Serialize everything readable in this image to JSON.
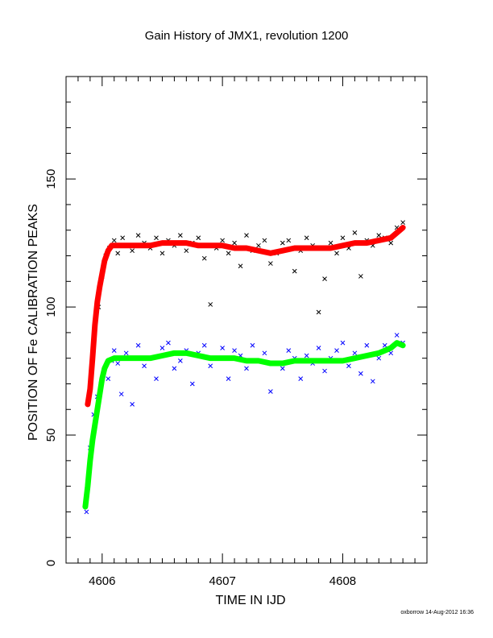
{
  "chart_data": {
    "type": "scatter",
    "title": "Gain History of JMX1, revolution 1200",
    "xlabel": "TIME IN IJD",
    "ylabel": "POSITION OF Fe CALIBRATION PEAKS",
    "xlim": [
      4605.7,
      4608.7
    ],
    "ylim": [
      0,
      190
    ],
    "x_ticks": [
      4606,
      4607,
      4608
    ],
    "y_ticks": [
      0,
      50,
      100,
      150
    ],
    "grid": false,
    "series": [
      {
        "marker": "x",
        "color": "#000000",
        "x": [
          4605.97,
          4606.0,
          4606.03,
          4606.06,
          4606.1,
          4606.13,
          4606.17,
          4606.2,
          4606.25,
          4606.3,
          4606.35,
          4606.4,
          4606.45,
          4606.5,
          4606.55,
          4606.6,
          4606.65,
          4606.7,
          4606.75,
          4606.8,
          4606.85,
          4606.9,
          4606.95,
          4607.0,
          4607.05,
          4607.1,
          4607.15,
          4607.2,
          4607.25,
          4607.3,
          4607.35,
          4607.4,
          4607.45,
          4607.5,
          4607.55,
          4607.6,
          4607.65,
          4607.7,
          4607.75,
          4607.8,
          4607.85,
          4607.9,
          4607.95,
          4608.0,
          4608.05,
          4608.1,
          4608.15,
          4608.2,
          4608.25,
          4608.3,
          4608.35,
          4608.4,
          4608.45,
          4608.5
        ],
        "y": [
          100,
          112,
          120,
          123,
          126,
          121,
          127,
          124,
          122,
          128,
          125,
          123,
          127,
          121,
          126,
          124,
          128,
          122,
          125,
          127,
          119,
          101,
          123,
          126,
          121,
          125,
          116,
          128,
          122,
          124,
          126,
          117,
          121,
          125,
          126,
          114,
          122,
          127,
          124,
          98,
          111,
          125,
          121,
          127,
          123,
          129,
          112,
          126,
          124,
          128,
          127,
          125,
          131,
          133
        ]
      },
      {
        "marker": "+",
        "color": "#ff0000",
        "x": [
          4605.88,
          4605.9,
          4605.92,
          4605.94,
          4605.96,
          4605.98,
          4606.0,
          4606.02,
          4606.05,
          4606.08,
          4606.12,
          4606.2,
          4606.3,
          4606.4,
          4606.5,
          4606.6,
          4606.7,
          4606.8,
          4606.9,
          4607.0,
          4607.1,
          4607.2,
          4607.3,
          4607.4,
          4607.5,
          4607.6,
          4607.7,
          4607.8,
          4607.9,
          4608.0,
          4608.1,
          4608.2,
          4608.3,
          4608.4,
          4608.5
        ],
        "y": [
          62,
          68,
          80,
          93,
          102,
          108,
          113,
          118,
          122,
          124,
          124,
          124,
          124,
          124,
          125,
          125,
          125,
          124,
          124,
          124,
          123,
          123,
          122,
          121,
          122,
          123,
          123,
          123,
          123,
          124,
          125,
          125,
          126,
          127,
          131
        ]
      },
      {
        "marker": "x",
        "color": "#0000ff",
        "x": [
          4605.87,
          4605.9,
          4605.93,
          4605.96,
          4605.99,
          4606.02,
          4606.05,
          4606.08,
          4606.1,
          4606.13,
          4606.16,
          4606.2,
          4606.25,
          4606.3,
          4606.35,
          4606.4,
          4606.45,
          4606.5,
          4606.55,
          4606.6,
          4606.65,
          4606.7,
          4606.75,
          4606.8,
          4606.85,
          4606.9,
          4606.95,
          4607.0,
          4607.05,
          4607.1,
          4607.15,
          4607.2,
          4607.25,
          4607.3,
          4607.35,
          4607.4,
          4607.45,
          4607.5,
          4607.55,
          4607.6,
          4607.65,
          4607.7,
          4607.75,
          4607.8,
          4607.85,
          4607.9,
          4607.95,
          4608.0,
          4608.05,
          4608.1,
          4608.15,
          4608.2,
          4608.25,
          4608.3,
          4608.35,
          4608.4,
          4608.45,
          4608.5
        ],
        "y": [
          20,
          45,
          58,
          65,
          70,
          76,
          72,
          79,
          83,
          78,
          66,
          82,
          62,
          85,
          77,
          80,
          72,
          84,
          86,
          76,
          79,
          83,
          70,
          82,
          85,
          77,
          80,
          84,
          72,
          83,
          81,
          76,
          85,
          79,
          82,
          67,
          78,
          76,
          83,
          80,
          72,
          81,
          78,
          84,
          75,
          80,
          83,
          86,
          77,
          82,
          74,
          85,
          71,
          80,
          85,
          82,
          89,
          86
        ]
      },
      {
        "marker": "+",
        "color": "#00ff00",
        "x": [
          4605.86,
          4605.88,
          4605.9,
          4605.92,
          4605.94,
          4605.96,
          4605.98,
          4606.0,
          4606.02,
          4606.05,
          4606.1,
          4606.2,
          4606.3,
          4606.4,
          4606.5,
          4606.6,
          4606.7,
          4606.8,
          4606.9,
          4607.0,
          4607.1,
          4607.2,
          4607.3,
          4607.4,
          4607.5,
          4607.6,
          4607.7,
          4607.8,
          4607.9,
          4608.0,
          4608.1,
          4608.2,
          4608.3,
          4608.4,
          4608.45,
          4608.5
        ],
        "y": [
          22,
          30,
          40,
          48,
          54,
          60,
          66,
          72,
          76,
          79,
          80,
          80,
          80,
          80,
          81,
          82,
          82,
          81,
          80,
          80,
          80,
          79,
          79,
          78,
          78,
          79,
          79,
          79,
          79,
          79,
          80,
          81,
          82,
          84,
          86,
          85
        ]
      }
    ]
  },
  "footer": "oxborrow 14-Aug-2012 16:36"
}
